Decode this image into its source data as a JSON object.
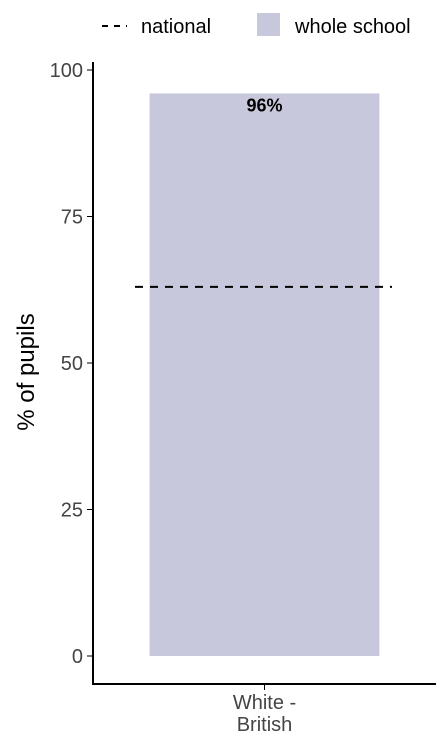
{
  "chart_data": {
    "type": "bar",
    "categories": [
      "White - British"
    ],
    "category_label_lines": [
      [
        "White -",
        "British"
      ]
    ],
    "series": [
      {
        "name": "whole school",
        "values": [
          96
        ],
        "color": "#c8c8dc"
      }
    ],
    "reference_lines": [
      {
        "name": "national",
        "value": 63,
        "style": "dashed",
        "color": "#000000"
      }
    ],
    "data_labels": [
      "96%"
    ],
    "ylabel": "% of pupils",
    "xlabel": "",
    "ylim": [
      0,
      100
    ],
    "yticks": [
      0,
      25,
      50,
      75,
      100
    ],
    "grid": false,
    "legend_position": "top"
  },
  "legend": {
    "items": [
      {
        "label": "national",
        "icon": "dashed-line-icon"
      },
      {
        "label": "whole school",
        "icon": "filled-square-icon",
        "color": "#c8c8dc"
      }
    ]
  }
}
